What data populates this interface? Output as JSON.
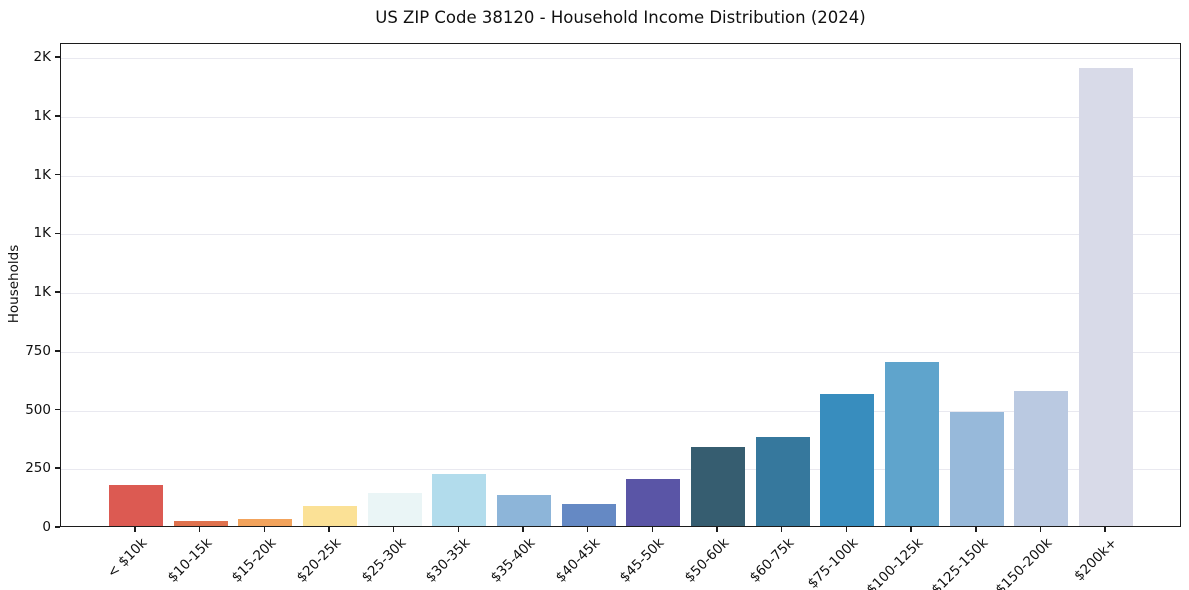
{
  "chart_data": {
    "type": "bar",
    "title": "US ZIP Code 38120 - Household Income Distribution (2024)",
    "xlabel": "",
    "ylabel": "Households",
    "categories": [
      "< $10k",
      "$10-15k",
      "$15-20k",
      "$20-25k",
      "$25-30k",
      "$30-35k",
      "$35-40k",
      "$40-45k",
      "$45-50k",
      "$50-60k",
      "$60-75k",
      "$75-100k",
      "$100-125k",
      "$125-150k",
      "$150-200k",
      "$200k+"
    ],
    "values": [
      175,
      20,
      28,
      85,
      140,
      220,
      131,
      92,
      200,
      336,
      380,
      560,
      698,
      484,
      574,
      1950
    ],
    "bar_colors": [
      "#dc5a52",
      "#df714d",
      "#f2a35c",
      "#fbe196",
      "#eaf5f6",
      "#b2dcec",
      "#8db5d9",
      "#6589c4",
      "#5a55a6",
      "#365d70",
      "#36789d",
      "#388dbe",
      "#5fa4cc",
      "#97b9da",
      "#bac9e1",
      "#d8dae8"
    ],
    "ylim": [
      0,
      2060
    ],
    "y_ticks": [
      {
        "value": 0,
        "label": "0"
      },
      {
        "value": 250,
        "label": "250"
      },
      {
        "value": 500,
        "label": "500"
      },
      {
        "value": 750,
        "label": "750"
      },
      {
        "value": 1000,
        "label": "1K"
      },
      {
        "value": 1250,
        "label": "1K"
      },
      {
        "value": 1500,
        "label": "1K"
      },
      {
        "value": 1750,
        "label": "1K"
      },
      {
        "value": 2000,
        "label": "2K"
      }
    ],
    "grid": "horizontal",
    "grid_color": "#e9e9f0",
    "spine_color": "#1c1c1c",
    "background_color": "#ffffff",
    "legend": "none",
    "x_tick_rotation_deg": 45
  }
}
